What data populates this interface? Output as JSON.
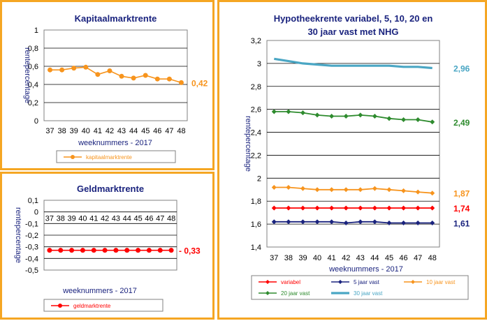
{
  "chart_data": [
    {
      "type": "line",
      "title": "Kapitaalmarktrente",
      "xlabel": "weeknummers - 2017",
      "ylabel": "rentepercentage",
      "categories": [
        "37",
        "38",
        "39",
        "40",
        "41",
        "42",
        "43",
        "44",
        "45",
        "46",
        "47",
        "48"
      ],
      "ylim": [
        0,
        1
      ],
      "yticks": [
        "0",
        "0,2",
        "0,4",
        "0,6",
        "0,8",
        "1"
      ],
      "grid": true,
      "legend": "bottom",
      "series": [
        {
          "name": "kapitaalmarktrente",
          "color": "#f7941d",
          "values": [
            0.56,
            0.56,
            0.58,
            0.59,
            0.51,
            0.55,
            0.49,
            0.47,
            0.5,
            0.46,
            0.46,
            0.42
          ],
          "end_label": "0,42"
        }
      ]
    },
    {
      "type": "line",
      "title": "Geldmarktrente",
      "xlabel": "weeknummers - 2017",
      "ylabel": "rentepercentage",
      "categories": [
        "37",
        "38",
        "39",
        "40",
        "41",
        "42",
        "43",
        "44",
        "45",
        "46",
        "47",
        "48"
      ],
      "ylim": [
        -0.5,
        0.1
      ],
      "yticks": [
        "-0,5",
        "-0,4",
        "-0,3",
        "-0,2",
        "-0,1",
        "0",
        "0,1"
      ],
      "grid": true,
      "legend": "bottom",
      "series": [
        {
          "name": "geldmarktrente",
          "color": "#ff0000",
          "values": [
            -0.33,
            -0.33,
            -0.33,
            -0.33,
            -0.33,
            -0.33,
            -0.33,
            -0.33,
            -0.33,
            -0.33,
            -0.33,
            -0.33
          ],
          "end_label": "- 0,33"
        }
      ]
    },
    {
      "type": "line",
      "title": "Hypotheekrente variabel, 5, 10, 20 en",
      "subtitle": "30 jaar vast met NHG",
      "xlabel": "weeknummers - 2017",
      "ylabel": "rentepercentage",
      "categories": [
        "37",
        "38",
        "39",
        "40",
        "41",
        "42",
        "43",
        "44",
        "45",
        "46",
        "47",
        "48"
      ],
      "ylim": [
        1.4,
        3.2
      ],
      "yticks": [
        "1,4",
        "1,6",
        "1,8",
        "2",
        "2,2",
        "2,4",
        "2,6",
        "2,8",
        "3",
        "3,2"
      ],
      "grid": true,
      "legend": "bottom",
      "series": [
        {
          "name": "variabel",
          "color": "#ff0000",
          "values": [
            1.74,
            1.74,
            1.74,
            1.74,
            1.74,
            1.74,
            1.74,
            1.74,
            1.74,
            1.74,
            1.74,
            1.74
          ],
          "end_label": "1,74"
        },
        {
          "name": "5 jaar vast",
          "color": "#1a237e",
          "values": [
            1.62,
            1.62,
            1.62,
            1.62,
            1.62,
            1.61,
            1.62,
            1.62,
            1.61,
            1.61,
            1.61,
            1.61
          ],
          "end_label": "1,61"
        },
        {
          "name": "10 jaar vast",
          "color": "#f7941d",
          "values": [
            1.92,
            1.92,
            1.91,
            1.9,
            1.9,
            1.9,
            1.9,
            1.91,
            1.9,
            1.89,
            1.88,
            1.87
          ],
          "end_label": "1,87"
        },
        {
          "name": "20 jaar vast",
          "color": "#2e8b2e",
          "values": [
            2.58,
            2.58,
            2.57,
            2.55,
            2.54,
            2.54,
            2.55,
            2.54,
            2.52,
            2.51,
            2.51,
            2.49
          ],
          "end_label": "2,49"
        },
        {
          "name": "30 jaar vast",
          "color": "#4aa6c4",
          "values": [
            3.04,
            3.02,
            3.0,
            2.99,
            2.98,
            2.98,
            2.98,
            2.98,
            2.98,
            2.97,
            2.97,
            2.96
          ],
          "end_label": "2,96"
        }
      ]
    }
  ]
}
